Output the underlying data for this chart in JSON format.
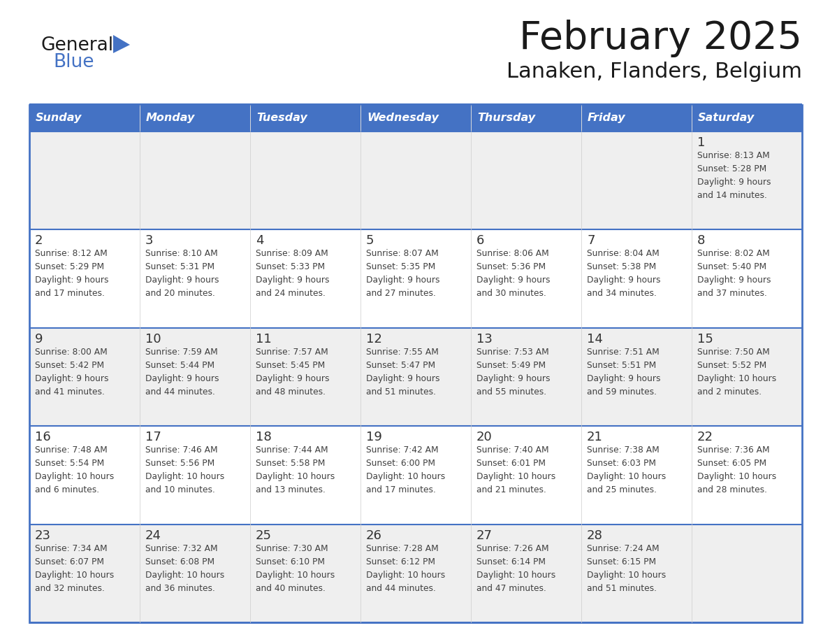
{
  "title": "February 2025",
  "subtitle": "Lanaken, Flanders, Belgium",
  "header_bg": "#4472C4",
  "header_text_color": "#FFFFFF",
  "days_of_week": [
    "Sunday",
    "Monday",
    "Tuesday",
    "Wednesday",
    "Thursday",
    "Friday",
    "Saturday"
  ],
  "cell_bg_odd": "#EFEFEF",
  "cell_bg_even": "#FFFFFF",
  "border_color": "#4472C4",
  "text_color": "#404040",
  "day_number_color": "#333333",
  "logo_general_color": "#1a1a1a",
  "logo_blue_color": "#4472C4",
  "logo_triangle_color": "#4472C4",
  "calendar_data": [
    [
      null,
      null,
      null,
      null,
      null,
      null,
      {
        "day": 1,
        "sunrise": "8:13 AM",
        "sunset": "5:28 PM",
        "daylight": "9 hours\nand 14 minutes."
      }
    ],
    [
      {
        "day": 2,
        "sunrise": "8:12 AM",
        "sunset": "5:29 PM",
        "daylight": "9 hours\nand 17 minutes."
      },
      {
        "day": 3,
        "sunrise": "8:10 AM",
        "sunset": "5:31 PM",
        "daylight": "9 hours\nand 20 minutes."
      },
      {
        "day": 4,
        "sunrise": "8:09 AM",
        "sunset": "5:33 PM",
        "daylight": "9 hours\nand 24 minutes."
      },
      {
        "day": 5,
        "sunrise": "8:07 AM",
        "sunset": "5:35 PM",
        "daylight": "9 hours\nand 27 minutes."
      },
      {
        "day": 6,
        "sunrise": "8:06 AM",
        "sunset": "5:36 PM",
        "daylight": "9 hours\nand 30 minutes."
      },
      {
        "day": 7,
        "sunrise": "8:04 AM",
        "sunset": "5:38 PM",
        "daylight": "9 hours\nand 34 minutes."
      },
      {
        "day": 8,
        "sunrise": "8:02 AM",
        "sunset": "5:40 PM",
        "daylight": "9 hours\nand 37 minutes."
      }
    ],
    [
      {
        "day": 9,
        "sunrise": "8:00 AM",
        "sunset": "5:42 PM",
        "daylight": "9 hours\nand 41 minutes."
      },
      {
        "day": 10,
        "sunrise": "7:59 AM",
        "sunset": "5:44 PM",
        "daylight": "9 hours\nand 44 minutes."
      },
      {
        "day": 11,
        "sunrise": "7:57 AM",
        "sunset": "5:45 PM",
        "daylight": "9 hours\nand 48 minutes."
      },
      {
        "day": 12,
        "sunrise": "7:55 AM",
        "sunset": "5:47 PM",
        "daylight": "9 hours\nand 51 minutes."
      },
      {
        "day": 13,
        "sunrise": "7:53 AM",
        "sunset": "5:49 PM",
        "daylight": "9 hours\nand 55 minutes."
      },
      {
        "day": 14,
        "sunrise": "7:51 AM",
        "sunset": "5:51 PM",
        "daylight": "9 hours\nand 59 minutes."
      },
      {
        "day": 15,
        "sunrise": "7:50 AM",
        "sunset": "5:52 PM",
        "daylight": "10 hours\nand 2 minutes."
      }
    ],
    [
      {
        "day": 16,
        "sunrise": "7:48 AM",
        "sunset": "5:54 PM",
        "daylight": "10 hours\nand 6 minutes."
      },
      {
        "day": 17,
        "sunrise": "7:46 AM",
        "sunset": "5:56 PM",
        "daylight": "10 hours\nand 10 minutes."
      },
      {
        "day": 18,
        "sunrise": "7:44 AM",
        "sunset": "5:58 PM",
        "daylight": "10 hours\nand 13 minutes."
      },
      {
        "day": 19,
        "sunrise": "7:42 AM",
        "sunset": "6:00 PM",
        "daylight": "10 hours\nand 17 minutes."
      },
      {
        "day": 20,
        "sunrise": "7:40 AM",
        "sunset": "6:01 PM",
        "daylight": "10 hours\nand 21 minutes."
      },
      {
        "day": 21,
        "sunrise": "7:38 AM",
        "sunset": "6:03 PM",
        "daylight": "10 hours\nand 25 minutes."
      },
      {
        "day": 22,
        "sunrise": "7:36 AM",
        "sunset": "6:05 PM",
        "daylight": "10 hours\nand 28 minutes."
      }
    ],
    [
      {
        "day": 23,
        "sunrise": "7:34 AM",
        "sunset": "6:07 PM",
        "daylight": "10 hours\nand 32 minutes."
      },
      {
        "day": 24,
        "sunrise": "7:32 AM",
        "sunset": "6:08 PM",
        "daylight": "10 hours\nand 36 minutes."
      },
      {
        "day": 25,
        "sunrise": "7:30 AM",
        "sunset": "6:10 PM",
        "daylight": "10 hours\nand 40 minutes."
      },
      {
        "day": 26,
        "sunrise": "7:28 AM",
        "sunset": "6:12 PM",
        "daylight": "10 hours\nand 44 minutes."
      },
      {
        "day": 27,
        "sunrise": "7:26 AM",
        "sunset": "6:14 PM",
        "daylight": "10 hours\nand 47 minutes."
      },
      {
        "day": 28,
        "sunrise": "7:24 AM",
        "sunset": "6:15 PM",
        "daylight": "10 hours\nand 51 minutes."
      },
      null
    ]
  ]
}
